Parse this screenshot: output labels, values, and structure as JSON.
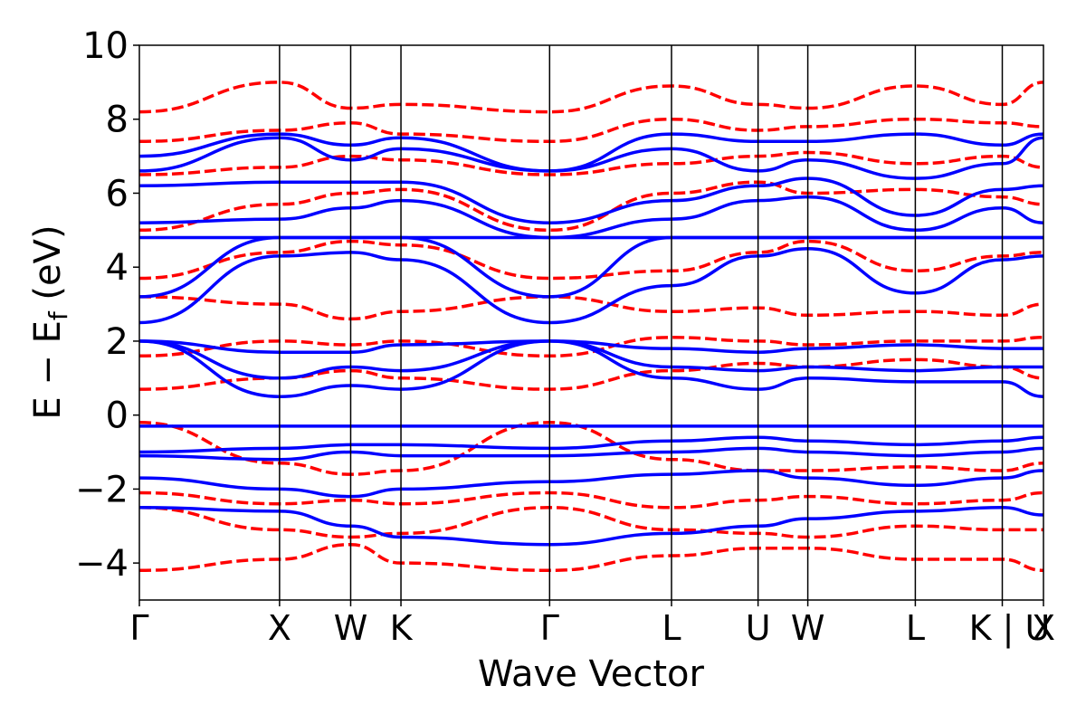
{
  "chart_data": {
    "type": "line",
    "title": "",
    "xlabel": "Wave Vector",
    "ylabel": "E − E_f (eV)",
    "ylabel_parts": {
      "main": "E − E",
      "sub": "f",
      "unit": " (eV)"
    },
    "ylim": [
      -5,
      10
    ],
    "yticks": [
      -4,
      -2,
      0,
      2,
      4,
      6,
      8,
      10
    ],
    "ytick_labels": [
      "−4",
      "−2",
      "0",
      "2",
      "4",
      "6",
      "8",
      "10"
    ],
    "kpath": [
      0,
      0.3833,
      0.5778,
      0.7153,
      1.1218,
      1.4551,
      1.6918,
      1.8278,
      2.1218,
      2.3596,
      2.4722
    ],
    "kpoint_labels": [
      "Γ",
      "X",
      "W",
      "K",
      "Γ",
      "L",
      "U",
      "W",
      "L",
      "K",
      "X"
    ],
    "break_label": {
      "index": 9,
      "text": "K | U"
    },
    "grid": false,
    "legend": "none",
    "series": [
      {
        "style": "solid",
        "color": "#0000ff",
        "bands": [
          [
            -2.5,
            -2.6,
            -3.0,
            -3.3,
            -3.5,
            -3.2,
            -3.0,
            -2.8,
            -2.6,
            -2.5,
            -2.7
          ],
          [
            -1.7,
            -2.0,
            -2.2,
            -2.0,
            -1.8,
            -1.6,
            -1.5,
            -1.7,
            -1.9,
            -1.7,
            -1.5
          ],
          [
            -1.1,
            -1.2,
            -1.0,
            -1.1,
            -1.1,
            -1.0,
            -0.9,
            -1.0,
            -1.1,
            -1.0,
            -0.9
          ],
          [
            -1.0,
            -0.9,
            -0.8,
            -0.8,
            -0.9,
            -0.7,
            -0.6,
            -0.7,
            -0.8,
            -0.7,
            -0.6
          ],
          [
            -0.3,
            -0.3,
            -0.3,
            -0.3,
            -0.3,
            -0.3,
            -0.3,
            -0.3,
            -0.3,
            -0.3,
            -0.3
          ],
          [
            2.0,
            0.5,
            0.8,
            0.7,
            2.0,
            1.0,
            0.7,
            1.0,
            0.9,
            0.9,
            0.5
          ],
          [
            2.0,
            1.0,
            1.3,
            1.2,
            2.0,
            1.3,
            1.2,
            1.3,
            1.2,
            1.3,
            1.3
          ],
          [
            2.0,
            1.7,
            1.7,
            1.9,
            2.0,
            1.8,
            1.7,
            1.8,
            1.9,
            1.8,
            1.8
          ],
          [
            2.5,
            4.3,
            4.4,
            4.2,
            2.5,
            3.5,
            4.3,
            4.5,
            3.3,
            4.2,
            4.3
          ],
          [
            3.2,
            4.8,
            4.8,
            4.8,
            3.2,
            4.8,
            4.8,
            4.8,
            4.8,
            4.8,
            4.8
          ],
          [
            4.8,
            4.8,
            4.8,
            4.8,
            4.8,
            4.8,
            4.8,
            4.8,
            4.8,
            4.8,
            4.8
          ],
          [
            5.2,
            5.3,
            5.6,
            5.8,
            4.8,
            5.3,
            5.8,
            5.9,
            5.0,
            5.6,
            5.2
          ],
          [
            6.2,
            6.3,
            6.3,
            6.3,
            5.2,
            5.8,
            6.2,
            6.4,
            5.4,
            6.1,
            6.2
          ],
          [
            6.6,
            7.5,
            6.9,
            7.2,
            6.6,
            7.2,
            6.6,
            6.9,
            6.4,
            6.8,
            7.5
          ],
          [
            7.0,
            7.6,
            7.3,
            7.5,
            6.6,
            7.6,
            7.4,
            7.4,
            7.6,
            7.3,
            7.6
          ]
        ]
      },
      {
        "style": "dashed",
        "color": "#ff0000",
        "bands": [
          [
            -4.2,
            -3.9,
            -3.5,
            -4.0,
            -4.2,
            -3.8,
            -3.6,
            -3.6,
            -3.9,
            -3.9,
            -4.2
          ],
          [
            -2.5,
            -3.1,
            -3.3,
            -3.2,
            -2.5,
            -3.1,
            -3.2,
            -3.3,
            -3.0,
            -3.1,
            -3.1
          ],
          [
            -2.1,
            -2.4,
            -2.3,
            -2.4,
            -2.1,
            -2.5,
            -2.3,
            -2.2,
            -2.4,
            -2.3,
            -2.1
          ],
          [
            -0.2,
            -1.3,
            -1.6,
            -1.5,
            -0.2,
            -1.2,
            -1.5,
            -1.5,
            -1.4,
            -1.5,
            -1.3
          ],
          [
            0.7,
            1.0,
            1.2,
            1.0,
            0.7,
            1.2,
            1.4,
            1.3,
            1.5,
            1.3,
            1.0
          ],
          [
            1.6,
            2.0,
            1.9,
            2.0,
            1.6,
            2.1,
            2.0,
            1.9,
            2.0,
            2.0,
            2.1
          ],
          [
            3.2,
            3.0,
            2.6,
            2.8,
            3.2,
            2.8,
            2.9,
            2.7,
            2.8,
            2.7,
            3.0
          ],
          [
            3.7,
            4.4,
            4.7,
            4.6,
            3.7,
            3.9,
            4.4,
            4.7,
            3.9,
            4.3,
            4.4
          ],
          [
            5.0,
            5.7,
            6.0,
            6.1,
            5.0,
            6.0,
            6.3,
            6.0,
            6.1,
            5.9,
            5.7
          ],
          [
            6.5,
            6.7,
            7.0,
            6.9,
            6.5,
            6.8,
            7.0,
            7.1,
            6.8,
            7.0,
            6.7
          ],
          [
            7.4,
            7.7,
            7.9,
            7.6,
            7.4,
            8.0,
            7.7,
            7.8,
            8.0,
            7.9,
            7.8
          ],
          [
            8.2,
            9.0,
            8.3,
            8.4,
            8.2,
            8.9,
            8.4,
            8.3,
            8.9,
            8.4,
            9.0
          ]
        ]
      }
    ]
  }
}
